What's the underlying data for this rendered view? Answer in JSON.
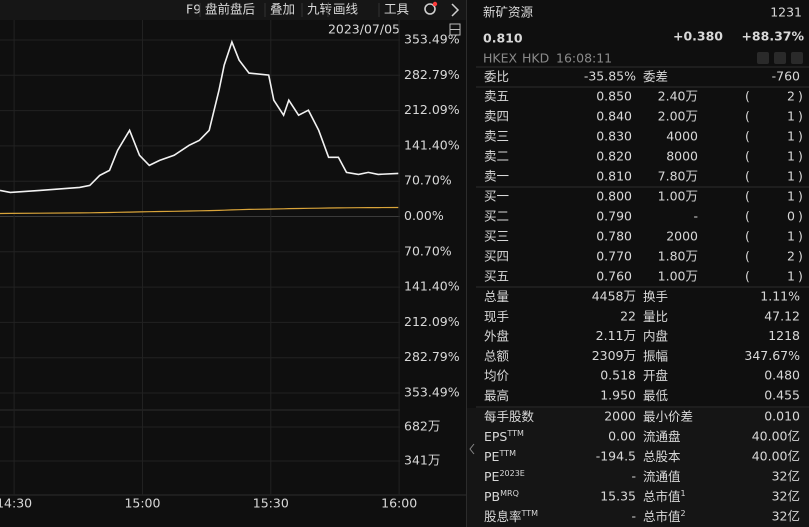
{
  "toolbar": [
    "F9",
    "盘前盘后",
    "叠加",
    "九转",
    "画线",
    "工具"
  ],
  "chart_data": {
    "type": "line",
    "date": "2023/07/05",
    "x": [
      -3.3,
      -0.9,
      6.0,
      15.3,
      17.7,
      20.0,
      22.3,
      24.2,
      27.0,
      29.3,
      31.6,
      34.0,
      37.4,
      40.9,
      43.3,
      45.6,
      47.9,
      49.1,
      50.9,
      52.6,
      54.9,
      59.5,
      60.7,
      63.0,
      64.2,
      66.5,
      68.8,
      71.2,
      73.5,
      75.8,
      77.7,
      80.5,
      82.8,
      85.1,
      89.8
    ],
    "series": [
      {
        "color": "#f2f2f2",
        "values": [
          52.2,
          48.2,
          52.2,
          58.2,
          62.2,
          82.3,
          92.4,
          132.5,
          172.7,
          122.5,
          102.4,
          112.4,
          122.5,
          142.6,
          152.6,
          172.7,
          253.0,
          303.2,
          349.4,
          313.2,
          287.1,
          283.1,
          232.9,
          202.8,
          232.9,
          202.8,
          212.8,
          172.7,
          118.5,
          118.5,
          88.4,
          84.3,
          88.4,
          84.3,
          86.3
        ]
      },
      {
        "color": "#d9a43a",
        "values": [
          6,
          6.2,
          6.6,
          7.2,
          7.5,
          7.8,
          8.1,
          8.4,
          8.8,
          9.2,
          9.6,
          10,
          10.5,
          11,
          11.4,
          11.8,
          12.3,
          12.7,
          13.2,
          13.7,
          14.2,
          14.8,
          15.1,
          15.5,
          15.8,
          16.1,
          16.4,
          16.7,
          17,
          17.2,
          17.4,
          17.6,
          17.8,
          17.9,
          18.1
        ]
      }
    ],
    "xlim": [
      -3.3,
      90.2
    ],
    "xticks": [
      {
        "value": 0,
        "label": "14:30"
      },
      {
        "value": 30,
        "label": "15:00"
      },
      {
        "value": 60,
        "label": "15:30"
      },
      {
        "value": 90,
        "label": "16:00"
      }
    ],
    "ylim": [
      -353.49,
      353.49
    ],
    "yticks": [
      {
        "value": 353.49,
        "label": "353.49%"
      },
      {
        "value": 282.79,
        "label": "282.79%"
      },
      {
        "value": 212.09,
        "label": "212.09%"
      },
      {
        "value": 141.4,
        "label": "141.40%"
      },
      {
        "value": 70.7,
        "label": "70.70%"
      },
      {
        "value": 0,
        "label": "0.00%"
      },
      {
        "value": -70.7,
        "label": "70.70%"
      },
      {
        "value": -141.4,
        "label": "141.40%"
      },
      {
        "value": -212.09,
        "label": "212.09%"
      },
      {
        "value": -282.79,
        "label": "282.79%"
      },
      {
        "value": -353.49,
        "label": "353.49%"
      }
    ],
    "volume_lim": [
      0,
      852
    ],
    "volume_ticks": [
      {
        "value": 682,
        "label": "682万"
      },
      {
        "value": 341,
        "label": "341万"
      }
    ],
    "grid": true
  },
  "quote": {
    "name": "新矿资源",
    "code": "1231",
    "price": "0.810",
    "change": "+0.380",
    "change_pct": "+88.37%",
    "exchange": "HKEX",
    "currency": "HKD",
    "time": "16:08:11"
  },
  "order_ratio": [
    {
      "label": "委比",
      "value": "-35.85%",
      "tone": "down"
    },
    {
      "label": "委差",
      "value": "-760",
      "tone": "down"
    }
  ],
  "asks": [
    {
      "label": "卖五",
      "price": "0.850",
      "volume": "2.40万",
      "count": "2"
    },
    {
      "label": "卖四",
      "price": "0.840",
      "volume": "2.00万",
      "count": "1"
    },
    {
      "label": "卖三",
      "price": "0.830",
      "volume": "4000",
      "count": "1"
    },
    {
      "label": "卖二",
      "price": "0.820",
      "volume": "8000",
      "count": "1"
    },
    {
      "label": "卖一",
      "price": "0.810",
      "volume": "7.80万",
      "count": "1"
    }
  ],
  "bids": [
    {
      "label": "买一",
      "price": "0.800",
      "volume": "1.00万",
      "count": "1"
    },
    {
      "label": "买二",
      "price": "0.790",
      "volume": "-",
      "count": "0"
    },
    {
      "label": "买三",
      "price": "0.780",
      "volume": "2000",
      "count": "1"
    },
    {
      "label": "买四",
      "price": "0.770",
      "volume": "1.80万",
      "count": "2"
    },
    {
      "label": "买五",
      "price": "0.760",
      "volume": "1.00万",
      "count": "1"
    }
  ],
  "stats": [
    [
      {
        "label": "总量",
        "value": "4458万"
      },
      {
        "label": "换手",
        "value": "1.11%"
      }
    ],
    [
      {
        "label": "现手",
        "value": "22"
      },
      {
        "label": "量比",
        "value": "47.12"
      }
    ],
    [
      {
        "label": "外盘",
        "value": "2.11万",
        "tone": "up"
      },
      {
        "label": "内盘",
        "value": "1218",
        "tone": "down"
      }
    ],
    [
      {
        "label": "总额",
        "value": "2309万"
      },
      {
        "label": "振幅",
        "value": "347.67%"
      }
    ],
    [
      {
        "label": "均价",
        "value": "0.518",
        "tone": "up"
      },
      {
        "label": "开盘",
        "value": "0.480",
        "tone": "up"
      }
    ],
    [
      {
        "label": "最高",
        "value": "1.950",
        "tone": "up"
      },
      {
        "label": "最低",
        "value": "0.455",
        "tone": "up"
      }
    ]
  ],
  "fundamentals": [
    [
      {
        "label": "每手股数",
        "value": "2000"
      },
      {
        "label": "最小价差",
        "value": "0.010"
      }
    ],
    [
      {
        "label": "EPS",
        "sup": "TTM",
        "value": "0.00"
      },
      {
        "label": "流通盘",
        "value": "40.00亿"
      }
    ],
    [
      {
        "label": "PE",
        "sup": "TTM",
        "value": "-194.5"
      },
      {
        "label": "总股本",
        "value": "40.00亿"
      }
    ],
    [
      {
        "label": "PE",
        "sup": "2023E",
        "value": "-"
      },
      {
        "label": "流通值",
        "value": "32亿"
      }
    ],
    [
      {
        "label": "PB",
        "sup": "MRQ",
        "value": "15.35"
      },
      {
        "label": "总市值",
        "sup": "1",
        "value": "32亿"
      }
    ],
    [
      {
        "label": "股息率",
        "sup": "TTM",
        "value": "-"
      },
      {
        "label": "总市值",
        "sup": "2",
        "value": "32亿"
      }
    ]
  ]
}
